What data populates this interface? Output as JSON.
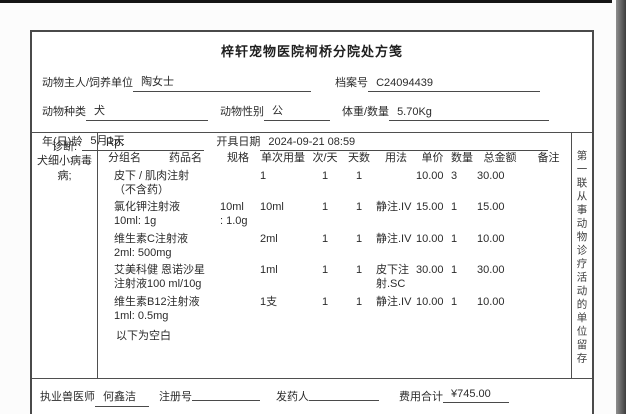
{
  "header": {
    "title": "梓轩宠物医院柯桥分院处方笺",
    "owner_label": "动物主人/饲养单位",
    "owner_value": "陶女士",
    "file_label": "档案号",
    "file_value": "C24094439",
    "species_label": "动物种类",
    "species_value": "犬",
    "gender_label": "动物性别",
    "gender_value": "公",
    "weight_label": "体重/数量",
    "weight_value": "5.70Kg",
    "age_label": "年(日)龄",
    "age_value": "5月1天",
    "date_label": "开具日期",
    "date_value": "2024-09-21 08:59"
  },
  "diagnosis": {
    "label": "诊断:",
    "value": "犬细小病毒病;"
  },
  "prescription": {
    "rp_label": "Rp:",
    "columns": [
      "分组名",
      "药品名",
      "规格",
      "单次用量",
      "次/天",
      "天数",
      "用法",
      "单价",
      "数量",
      "总金额",
      "备注"
    ],
    "rows": [
      {
        "name": "皮下 / 肌肉注射\n（不含药）",
        "spec": "",
        "dose": "1",
        "times": "1",
        "days": "1",
        "usage": "",
        "price": "10.00",
        "qty": "3",
        "total": "30.00",
        "remark": ""
      },
      {
        "name": "氯化钾注射液\n10ml: 1g",
        "spec": "10ml\n: 1.0g",
        "dose": "10ml",
        "times": "1",
        "days": "1",
        "usage": "静注.IV",
        "price": "15.00",
        "qty": "1",
        "total": "15.00",
        "remark": ""
      },
      {
        "name": "维生素C注射液\n2ml: 500mg",
        "spec": "",
        "dose": "2ml",
        "times": "1",
        "days": "1",
        "usage": "静注.IV",
        "price": "10.00",
        "qty": "1",
        "total": "10.00",
        "remark": ""
      },
      {
        "name": "艾美科健 恩诺沙星\n注射液100 ml/10g",
        "spec": "",
        "dose": "1ml",
        "times": "1",
        "days": "1",
        "usage": "皮下注射.SC",
        "price": "30.00",
        "qty": "1",
        "total": "30.00",
        "remark": ""
      },
      {
        "name": "维生素B12注射液\n1ml: 0.5mg",
        "spec": "",
        "dose": "1支",
        "times": "1",
        "days": "1",
        "usage": "静注.IV",
        "price": "10.00",
        "qty": "1",
        "total": "10.00",
        "remark": ""
      }
    ],
    "end_note": "以下为空白"
  },
  "side_note": "第一联从事动物诊疗活动的单位留存",
  "footer": {
    "vet_label": "执业兽医师",
    "vet_value": "何鑫洁",
    "reg_label": "注册号",
    "reg_value": "",
    "dispenser_label": "发药人",
    "dispenser_value": "",
    "total_label": "费用合计",
    "total_value": "¥745.00"
  }
}
